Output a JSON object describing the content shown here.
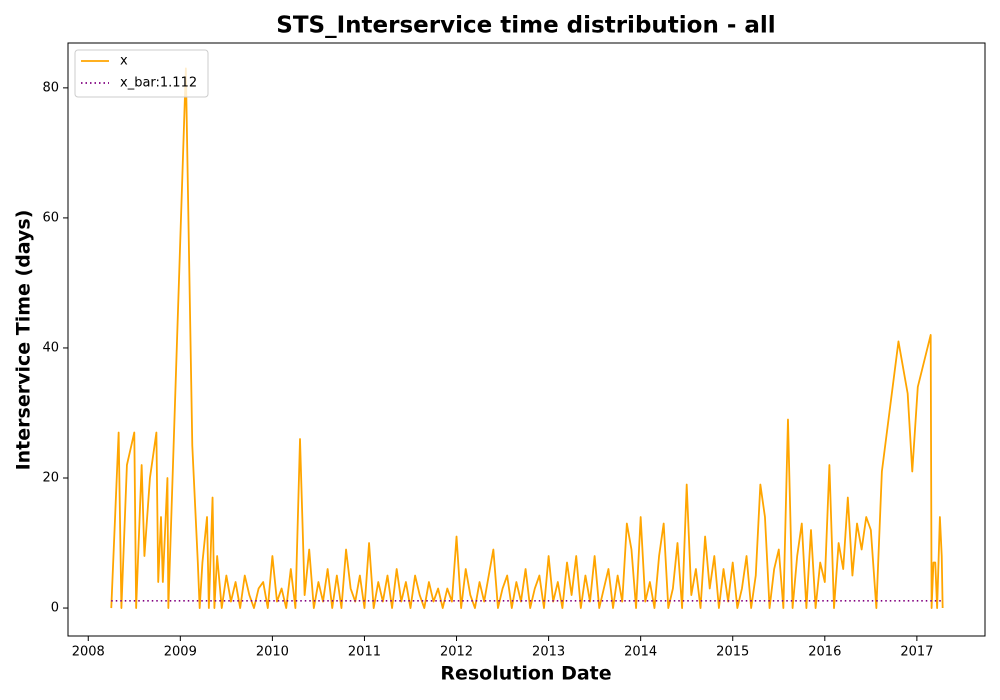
{
  "chart_data": {
    "type": "line",
    "title": "STS_Interservice time distribution - all",
    "x_label": "Resolution Date",
    "y_label": "Interservice Time (days)",
    "xlim": [
      2007.78,
      2017.74
    ],
    "ylim": [
      -4.3,
      86.9
    ],
    "xticks": [
      2008,
      2009,
      2010,
      2011,
      2012,
      2013,
      2014,
      2015,
      2016,
      2017
    ],
    "yticks": [
      0,
      20,
      40,
      60,
      80
    ],
    "legend": "upper left",
    "series": [
      {
        "name": "x",
        "color": "#ffa500",
        "style": "solid",
        "x": [
          2008.25,
          2008.33,
          2008.36,
          2008.42,
          2008.5,
          2008.52,
          2008.58,
          2008.61,
          2008.67,
          2008.74,
          2008.76,
          2008.79,
          2008.81,
          2008.86,
          2008.87,
          2009.06,
          2009.13,
          2009.19,
          2009.21,
          2009.24,
          2009.29,
          2009.31,
          2009.35,
          2009.37,
          2009.4,
          2009.45,
          2009.5,
          2009.55,
          2009.6,
          2009.65,
          2009.7,
          2009.75,
          2009.8,
          2009.85,
          2009.9,
          2009.95,
          2010.0,
          2010.05,
          2010.1,
          2010.15,
          2010.2,
          2010.25,
          2010.3,
          2010.35,
          2010.4,
          2010.45,
          2010.5,
          2010.55,
          2010.6,
          2010.65,
          2010.7,
          2010.75,
          2010.8,
          2010.85,
          2010.9,
          2010.95,
          2011.0,
          2011.05,
          2011.1,
          2011.15,
          2011.2,
          2011.25,
          2011.3,
          2011.35,
          2011.4,
          2011.45,
          2011.5,
          2011.55,
          2011.6,
          2011.65,
          2011.7,
          2011.75,
          2011.8,
          2011.85,
          2011.9,
          2011.95,
          2012.0,
          2012.05,
          2012.1,
          2012.15,
          2012.2,
          2012.25,
          2012.3,
          2012.35,
          2012.4,
          2012.45,
          2012.5,
          2012.55,
          2012.6,
          2012.65,
          2012.7,
          2012.75,
          2012.8,
          2012.85,
          2012.9,
          2012.95,
          2013.0,
          2013.05,
          2013.1,
          2013.15,
          2013.2,
          2013.25,
          2013.3,
          2013.35,
          2013.4,
          2013.45,
          2013.5,
          2013.55,
          2013.6,
          2013.65,
          2013.7,
          2013.75,
          2013.8,
          2013.85,
          2013.9,
          2013.95,
          2014.0,
          2014.05,
          2014.1,
          2014.15,
          2014.2,
          2014.25,
          2014.3,
          2014.35,
          2014.4,
          2014.45,
          2014.5,
          2014.55,
          2014.6,
          2014.65,
          2014.7,
          2014.75,
          2014.8,
          2014.85,
          2014.9,
          2014.95,
          2015.0,
          2015.05,
          2015.1,
          2015.15,
          2015.2,
          2015.25,
          2015.3,
          2015.35,
          2015.4,
          2015.45,
          2015.5,
          2015.55,
          2015.6,
          2015.65,
          2015.7,
          2015.75,
          2015.8,
          2015.85,
          2015.9,
          2015.95,
          2016.0,
          2016.05,
          2016.1,
          2016.15,
          2016.2,
          2016.25,
          2016.3,
          2016.35,
          2016.4,
          2016.45,
          2016.5,
          2016.56,
          2016.62,
          2016.8,
          2016.9,
          2016.95,
          2017.01,
          2017.15,
          2017.16,
          2017.18,
          2017.2,
          2017.22,
          2017.25,
          2017.27,
          2017.28
        ],
        "values": [
          0,
          27,
          0,
          22,
          27,
          0,
          22,
          8,
          20,
          27,
          4,
          14,
          4,
          20,
          0,
          83,
          25,
          7,
          0,
          7,
          14,
          0,
          17,
          0,
          8,
          0,
          5,
          1,
          4,
          0,
          5,
          2,
          0,
          3,
          4,
          0,
          8,
          1,
          3,
          0,
          6,
          0,
          26,
          2,
          9,
          0,
          4,
          1,
          6,
          0,
          5,
          0,
          9,
          3,
          1,
          5,
          0,
          10,
          0,
          4,
          1,
          5,
          0,
          6,
          1,
          4,
          0,
          5,
          2,
          0,
          4,
          1,
          3,
          0,
          3,
          1,
          11,
          0,
          6,
          2,
          0,
          4,
          1,
          5,
          9,
          0,
          3,
          5,
          0,
          4,
          1,
          6,
          0,
          3,
          5,
          0,
          8,
          1,
          4,
          0,
          7,
          2,
          8,
          0,
          5,
          1,
          8,
          0,
          3,
          6,
          0,
          5,
          1,
          13,
          9,
          0,
          14,
          1,
          4,
          0,
          8,
          13,
          0,
          3,
          10,
          0,
          19,
          2,
          6,
          0,
          11,
          3,
          8,
          0,
          6,
          1,
          7,
          0,
          3,
          8,
          0,
          5,
          19,
          14,
          0,
          6,
          9,
          0,
          29,
          0,
          8,
          13,
          0,
          12,
          0,
          7,
          4,
          22,
          0,
          10,
          6,
          17,
          5,
          13,
          9,
          14,
          12,
          0,
          21,
          41,
          33,
          21,
          34,
          42,
          0,
          7,
          7,
          0,
          14,
          8,
          0
        ]
      },
      {
        "name": "x_bar:1.112",
        "color": "#800080",
        "style": "dotted",
        "x": [
          2008.25,
          2017.28
        ],
        "values": [
          1.112,
          1.112
        ]
      }
    ]
  }
}
